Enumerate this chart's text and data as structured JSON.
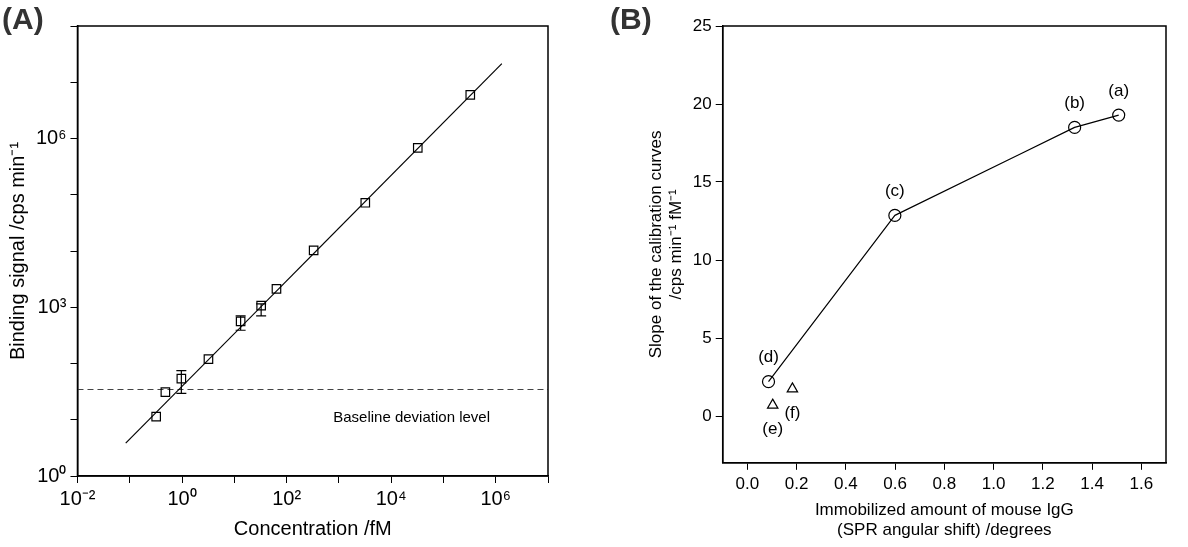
{
  "chart_data": [
    {
      "type": "scatter",
      "title": "(A)",
      "xlabel": "Concentration /fM",
      "ylabel": "Binding signal /cps min⁻¹",
      "log": "xy",
      "xlim": [
        0.01,
        10000000
      ],
      "ylim": [
        1,
        100000000
      ],
      "xticks": [
        {
          "value": 0.01,
          "label": "10⁻²"
        },
        {
          "value": 0.1,
          "label": null
        },
        {
          "value": 1,
          "label": "10⁰"
        },
        {
          "value": 10,
          "label": null
        },
        {
          "value": 100,
          "label": "10²"
        },
        {
          "value": 1000,
          "label": null
        },
        {
          "value": 10000,
          "label": "10⁴"
        },
        {
          "value": 100000,
          "label": null
        },
        {
          "value": 1000000,
          "label": "10⁶"
        },
        {
          "value": 10000000,
          "label": null
        }
      ],
      "yticks": [
        {
          "value": 1,
          "label": "10⁰"
        },
        {
          "value": 10,
          "label": null
        },
        {
          "value": 100,
          "label": null
        },
        {
          "value": 1000,
          "label": "10³"
        },
        {
          "value": 10000,
          "label": null
        },
        {
          "value": 100000,
          "label": null
        },
        {
          "value": 1000000,
          "label": "10⁶"
        },
        {
          "value": 10000000,
          "label": null
        },
        {
          "value": 100000000,
          "label": null
        }
      ],
      "ref_lines": [
        {
          "axis": "y",
          "value": 34.5,
          "label": "Baseline deviation level",
          "line_style": "dashed",
          "color": "#444444"
        }
      ],
      "series": [
        {
          "type": "scatter",
          "marker": "square",
          "color": "#000000",
          "x": [
            0.32,
            0.48,
            0.97,
            3.2,
            13.2,
            32.6,
            64,
            329,
            3200,
            32300,
            326000
          ],
          "values": [
            11.4,
            31,
            54,
            120,
            563,
            1067,
            2120,
            10250,
            72000,
            681000,
            5960000
          ],
          "errors": [
            null,
            null,
            [
              29.5,
              75
            ],
            null,
            [
              390,
              700
            ],
            [
              700,
              1150
            ],
            null,
            null,
            null,
            null,
            null
          ]
        },
        {
          "type": "line",
          "marker": "none",
          "color": "#000000",
          "x": [
            0.0837,
            1310000
          ],
          "values": [
            3.83,
            21400000
          ]
        }
      ]
    },
    {
      "type": "scatter",
      "title": "(B)",
      "xlabel": "Immobilized amount of mouse IgG\n(SPR angular shift) /degrees",
      "ylabel": "Slope of the calibration curves\n/cps min⁻¹ fM⁻¹",
      "xlim": [
        -0.1,
        1.7
      ],
      "ylim": [
        -3,
        25
      ],
      "xticks": [
        {
          "value": 0,
          "label": "0.0"
        },
        0.2,
        0.4,
        0.6,
        0.8,
        {
          "value": 1,
          "label": "1.0"
        },
        1.2,
        1.4,
        1.6
      ],
      "yticks": [
        0,
        5,
        10,
        15,
        20,
        25
      ],
      "series": [
        {
          "type": "line",
          "marker": "circle",
          "color": "#000000",
          "x": [
            0.086,
            0.599,
            1.329,
            1.508
          ],
          "values": [
            2.2,
            12.86,
            18.5,
            19.29
          ],
          "value_labels": [
            "(d)",
            "(c)",
            "(b)",
            "(a)"
          ]
        },
        {
          "type": "scatter",
          "name": "(e)",
          "marker": "triangle",
          "color": "#000000",
          "x": [
            0.103
          ],
          "values": [
            0.7
          ]
        },
        {
          "type": "scatter",
          "name": "(f)",
          "marker": "triangle",
          "color": "#000000",
          "x": [
            0.183
          ],
          "values": [
            1.74
          ]
        }
      ]
    }
  ]
}
